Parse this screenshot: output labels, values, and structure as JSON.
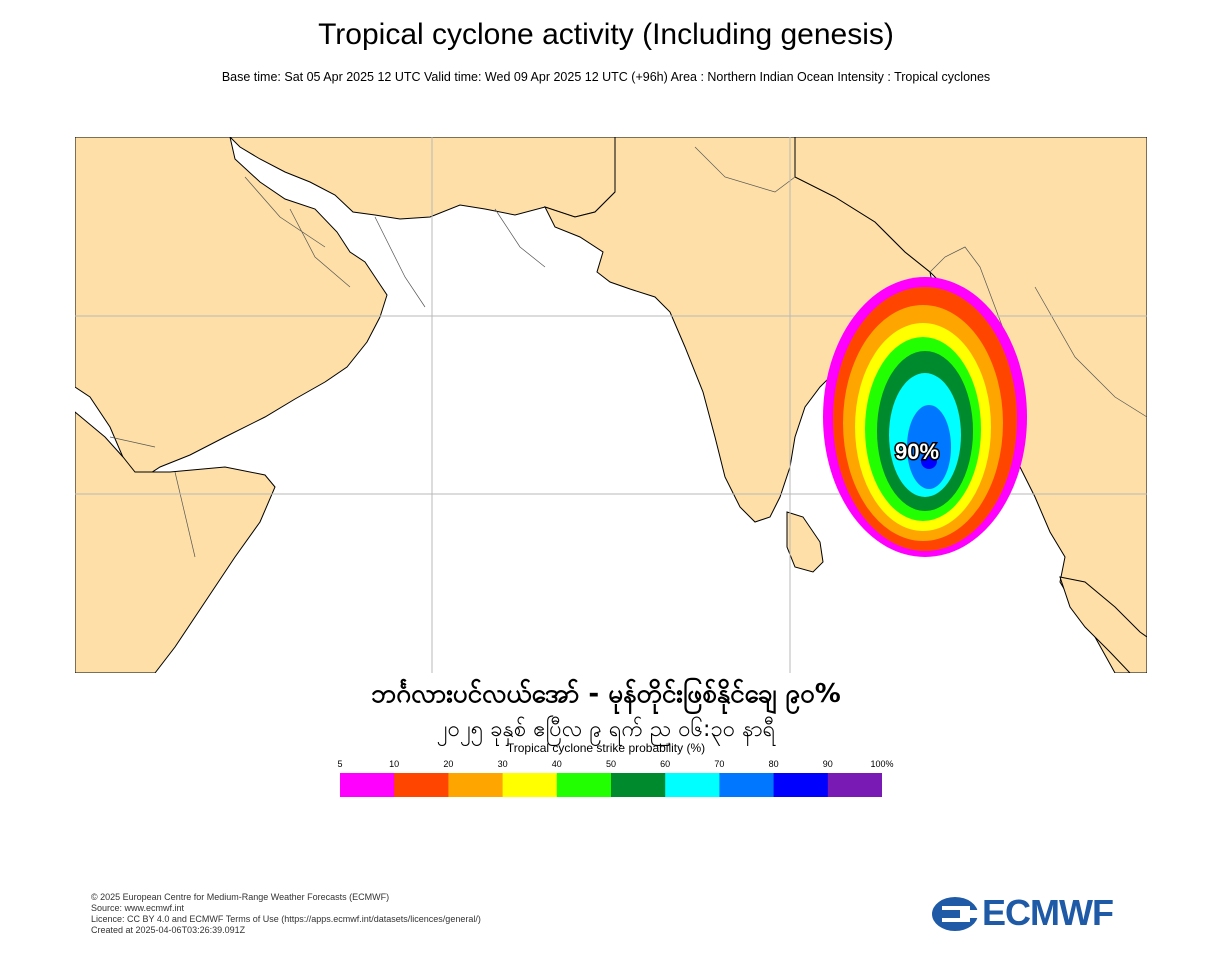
{
  "header": {
    "title": "Tropical cyclone activity (Including genesis)",
    "subtitle": "Base time: Sat 05 Apr 2025 12 UTC Valid time: Wed 09 Apr 2025 12 UTC (+96h) Area : Northern Indian Ocean Intensity : Tropical cyclones"
  },
  "map": {
    "peak_label": "90%",
    "land_color": "#fddfa7",
    "sea_color": "#ffffff"
  },
  "overlay": {
    "line1": "ဘင်္ဂလားပင်လယ်အော် - မုန်တိုင်းဖြစ်နိုင်ချေ ၉၀%",
    "line2": "၂၀၂၅ ခုနှစ် ဧပြီလ ၉ ရက် ည ၀၆:၃၀ နာရီ"
  },
  "colorbar": {
    "title": "Tropical cyclone strike probability (%)",
    "ticks": [
      "5",
      "10",
      "20",
      "30",
      "40",
      "50",
      "60",
      "70",
      "80",
      "90",
      "100%"
    ],
    "colors": [
      "#ff00ff",
      "#ff4500",
      "#ffa500",
      "#ffff00",
      "#22ff00",
      "#008a2e",
      "#00ffff",
      "#0077ff",
      "#0000ff",
      "#7a1ab5"
    ]
  },
  "footer": {
    "line1": "© 2025 European Centre for Medium-Range Weather Forecasts (ECMWF)",
    "line2": "Source: www.ecmwf.int",
    "line3": "Licence: CC BY 4.0 and ECMWF Terms of Use (https://apps.ecmwf.int/datasets/licences/general/)",
    "line4": "Created at 2025-04-06T03:26:39.091Z"
  },
  "logo": {
    "text": "ECMWF",
    "color": "#1f5aa6"
  }
}
